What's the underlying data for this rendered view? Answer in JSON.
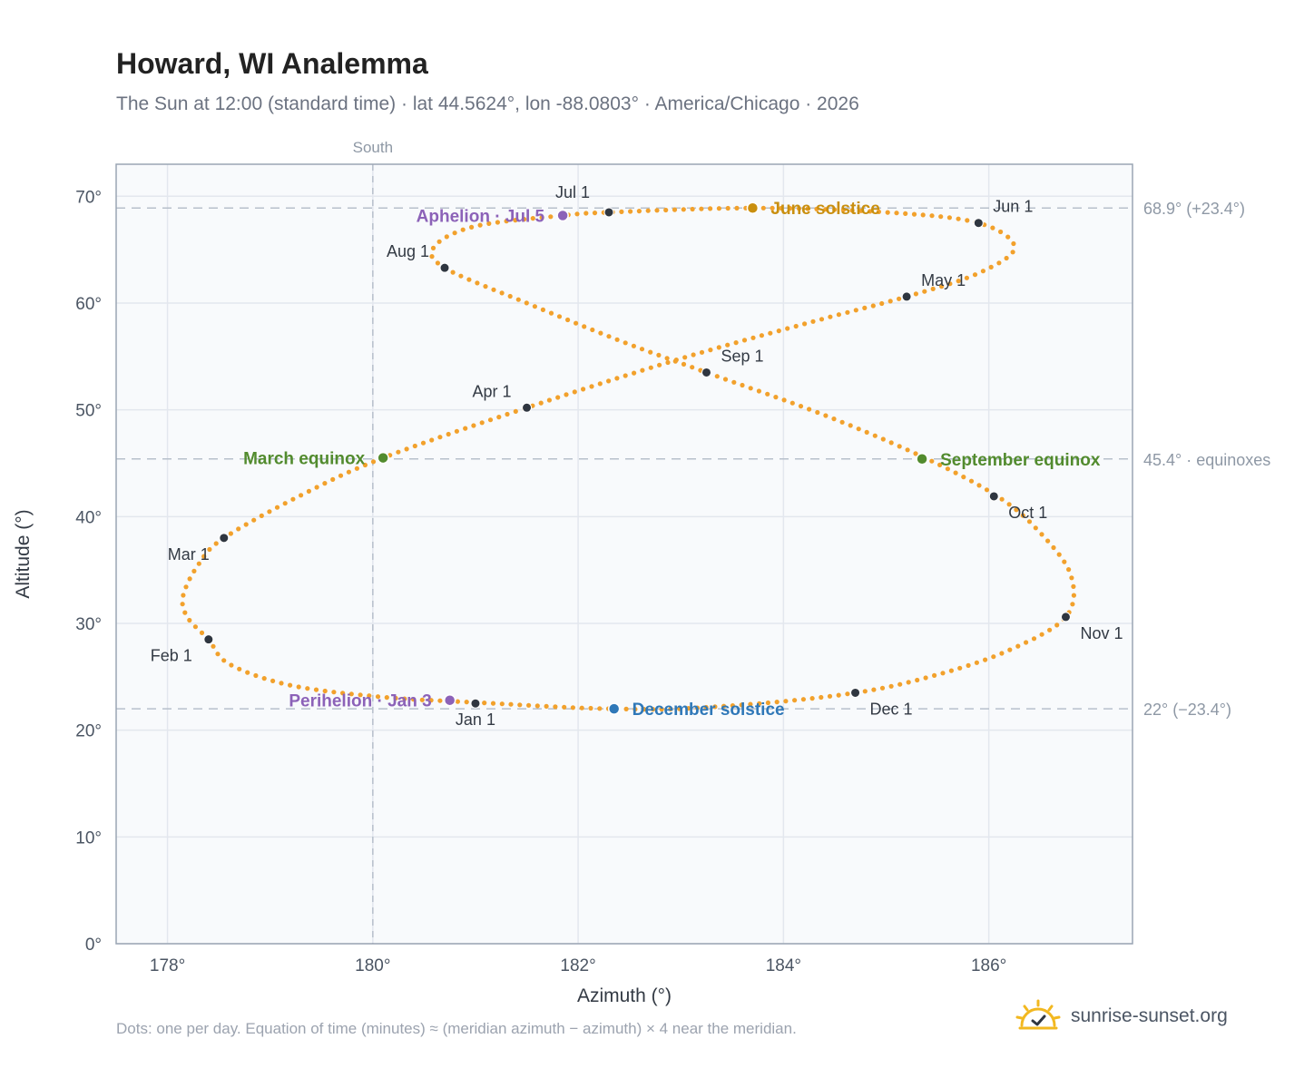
{
  "title": "Howard, WI Analemma",
  "subtitle": "The Sun at 12:00 (standard time) · lat 44.5624°, lon -88.0803° · America/Chicago · 2026",
  "footnote": "Dots: one per day. Equation of time (minutes) ≈ (meridian azimuth − azimuth) × 4 near the meridian.",
  "brand": {
    "text": "sunrise-sunset.org",
    "icon": "sun-check-icon"
  },
  "colors": {
    "path": "#f2a12c",
    "month_dot": "#2f3640",
    "march_equinox": "#528b2e",
    "september_equinox": "#528b2e",
    "june_solstice": "#c98f0f",
    "december_solstice": "#2f78b8",
    "aphelion": "#8c62b8",
    "perihelion": "#8c62b8",
    "plot_bg": "#f8fafc",
    "grid": "#e3e7ee",
    "frame": "#9aa5b4",
    "ref_line": "#b7c0cb"
  },
  "chart_data": {
    "type": "scatter",
    "xlabel": "Azimuth (°)",
    "ylabel": "Altitude (°)",
    "xlim": [
      177.5,
      187.4
    ],
    "ylim": [
      0,
      73
    ],
    "x_ticks": [
      178,
      180,
      182,
      184,
      186
    ],
    "x_tick_labels": [
      "178°",
      "180°",
      "182°",
      "184°",
      "186°"
    ],
    "y_ticks": [
      0,
      10,
      20,
      30,
      40,
      50,
      60,
      70
    ],
    "y_tick_labels": [
      "0°",
      "10°",
      "20°",
      "30°",
      "40°",
      "50°",
      "60°",
      "70°"
    ],
    "grid": true,
    "vertical_reference": {
      "x": 180,
      "label": "South"
    },
    "horizontal_references": [
      {
        "y": 68.9,
        "label": "68.9° (+23.4°)"
      },
      {
        "y": 45.4,
        "label": "45.4° · equinoxes"
      },
      {
        "y": 22,
        "label": "22° (−23.4°)"
      }
    ],
    "analemma_path": [
      {
        "az": 181.0,
        "alt": 22.6
      },
      {
        "az": 180.1,
        "alt": 23.1
      },
      {
        "az": 179.2,
        "alt": 24.2
      },
      {
        "az": 178.6,
        "alt": 26.2
      },
      {
        "az": 178.4,
        "alt": 28.5
      },
      {
        "az": 178.2,
        "alt": 30.5
      },
      {
        "az": 178.15,
        "alt": 32.5
      },
      {
        "az": 178.3,
        "alt": 35.5
      },
      {
        "az": 178.55,
        "alt": 38.0
      },
      {
        "az": 179.3,
        "alt": 42.0
      },
      {
        "az": 180.1,
        "alt": 45.5
      },
      {
        "az": 181.5,
        "alt": 50.2
      },
      {
        "az": 183.0,
        "alt": 54.8
      },
      {
        "az": 184.3,
        "alt": 58.3
      },
      {
        "az": 185.2,
        "alt": 60.6
      },
      {
        "az": 185.9,
        "alt": 62.8
      },
      {
        "az": 186.25,
        "alt": 65.2
      },
      {
        "az": 185.9,
        "alt": 67.5
      },
      {
        "az": 185.0,
        "alt": 68.5
      },
      {
        "az": 183.7,
        "alt": 68.9
      },
      {
        "az": 182.3,
        "alt": 68.5
      },
      {
        "az": 181.85,
        "alt": 68.2
      },
      {
        "az": 181.0,
        "alt": 67.2
      },
      {
        "az": 180.6,
        "alt": 65.3
      },
      {
        "az": 180.7,
        "alt": 63.3
      },
      {
        "az": 181.5,
        "alt": 60.0
      },
      {
        "az": 182.4,
        "alt": 56.5
      },
      {
        "az": 183.25,
        "alt": 53.5
      },
      {
        "az": 184.4,
        "alt": 49.5
      },
      {
        "az": 185.4,
        "alt": 45.4
      },
      {
        "az": 186.1,
        "alt": 41.8
      },
      {
        "az": 186.5,
        "alt": 38.5
      },
      {
        "az": 186.8,
        "alt": 34.5
      },
      {
        "az": 186.75,
        "alt": 30.6
      },
      {
        "az": 186.2,
        "alt": 27.5
      },
      {
        "az": 185.5,
        "alt": 25.2
      },
      {
        "az": 184.7,
        "alt": 23.5
      },
      {
        "az": 183.5,
        "alt": 22.3
      },
      {
        "az": 182.35,
        "alt": 22.0
      },
      {
        "az": 181.0,
        "alt": 22.6
      }
    ],
    "month_markers": [
      {
        "label": "Jan 1",
        "az": 181.0,
        "alt": 22.5
      },
      {
        "label": "Feb 1",
        "az": 178.4,
        "alt": 28.5
      },
      {
        "label": "Mar 1",
        "az": 178.55,
        "alt": 38.0
      },
      {
        "label": "Apr 1",
        "az": 181.5,
        "alt": 50.2
      },
      {
        "label": "May 1",
        "az": 185.2,
        "alt": 60.6
      },
      {
        "label": "Jun 1",
        "az": 185.9,
        "alt": 67.5
      },
      {
        "label": "Jul 1",
        "az": 182.3,
        "alt": 68.5
      },
      {
        "label": "Aug 1",
        "az": 180.7,
        "alt": 63.3
      },
      {
        "label": "Sep 1",
        "az": 183.25,
        "alt": 53.5
      },
      {
        "label": "Oct 1",
        "az": 186.05,
        "alt": 41.9
      },
      {
        "label": "Nov 1",
        "az": 186.75,
        "alt": 30.6
      },
      {
        "label": "Dec 1",
        "az": 184.7,
        "alt": 23.5
      }
    ],
    "events": [
      {
        "label": "March equinox",
        "az": 180.1,
        "alt": 45.5,
        "color_key": "march_equinox"
      },
      {
        "label": "September equinox",
        "az": 185.35,
        "alt": 45.4,
        "color_key": "september_equinox"
      },
      {
        "label": "June solstice",
        "az": 183.7,
        "alt": 68.9,
        "color_key": "june_solstice"
      },
      {
        "label": "December solstice",
        "az": 182.35,
        "alt": 22.0,
        "color_key": "december_solstice"
      },
      {
        "label": "Aphelion · Jul 5",
        "az": 181.85,
        "alt": 68.2,
        "color_key": "aphelion"
      },
      {
        "label": "Perihelion · Jan 3",
        "az": 180.75,
        "alt": 22.8,
        "color_key": "perihelion"
      }
    ]
  }
}
